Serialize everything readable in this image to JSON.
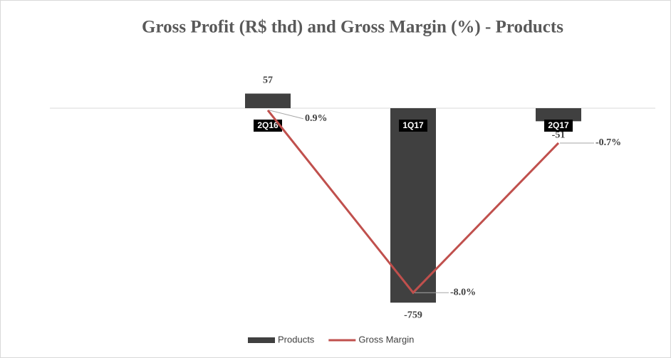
{
  "chart_data": {
    "type": "bar_line",
    "title": "Gross Profit (R$ thd) and Gross Margin (%) - Products",
    "categories": [
      "2Q16",
      "1Q17",
      "2Q17"
    ],
    "series": [
      {
        "name": "Products",
        "type": "bar",
        "color": "#404040",
        "values": [
          57,
          -759,
          -51
        ]
      },
      {
        "name": "Gross Margin",
        "type": "line",
        "axis": "y2",
        "color": "#c0504d",
        "values": [
          0.9,
          -8.0,
          -0.7
        ],
        "value_labels": [
          "0.9%",
          "-8.0%",
          "-0.7%"
        ]
      }
    ],
    "ylim": [
      -800,
      200
    ],
    "y2lim": [
      -9,
      3.5
    ],
    "legend": "bottom"
  }
}
